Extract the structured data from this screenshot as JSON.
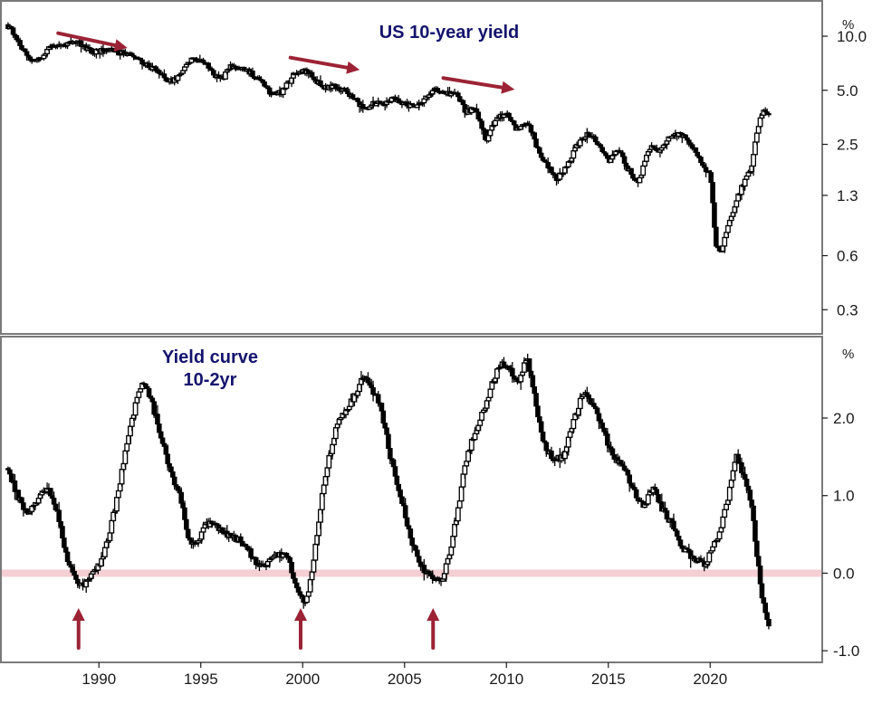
{
  "chart_data": [
    {
      "type": "candlestick",
      "title": "US 10-year yield",
      "unit": "%",
      "y_scale": "log",
      "y_ticks": [
        0.3,
        0.6,
        1.3,
        2.5,
        5.0,
        10.0
      ],
      "y_tick_labels": [
        "0.3",
        "0.6",
        "1.3",
        "2.5",
        "5.0",
        "10.0"
      ],
      "ylim": [
        0.22,
        14.5
      ],
      "xlim": [
        1985.5,
        2025.5
      ],
      "grid": false,
      "trend_arrows": [
        {
          "direction": "down",
          "from": [
            1988.0,
            10.4
          ],
          "to": [
            1991.4,
            8.6
          ]
        },
        {
          "direction": "down",
          "from": [
            1999.4,
            7.6
          ],
          "to": [
            2002.8,
            6.5
          ]
        },
        {
          "direction": "down",
          "from": [
            2006.9,
            5.85
          ],
          "to": [
            2010.4,
            5.05
          ]
        }
      ],
      "color_arrow": "#9b2335",
      "series_points": [
        [
          1985.5,
          11.6
        ],
        [
          1986.0,
          9.6
        ],
        [
          1986.5,
          7.6
        ],
        [
          1987.0,
          7.2
        ],
        [
          1987.5,
          8.6
        ],
        [
          1988.0,
          9.0
        ],
        [
          1988.5,
          9.1
        ],
        [
          1989.0,
          9.2
        ],
        [
          1989.5,
          8.3
        ],
        [
          1990.0,
          8.2
        ],
        [
          1990.5,
          8.6
        ],
        [
          1991.0,
          8.1
        ],
        [
          1991.5,
          7.8
        ],
        [
          1992.0,
          7.3
        ],
        [
          1992.5,
          6.8
        ],
        [
          1993.0,
          6.2
        ],
        [
          1993.5,
          5.6
        ],
        [
          1994.0,
          6.0
        ],
        [
          1994.5,
          7.3
        ],
        [
          1995.0,
          7.6
        ],
        [
          1995.5,
          6.3
        ],
        [
          1996.0,
          5.7
        ],
        [
          1996.5,
          6.8
        ],
        [
          1997.0,
          6.6
        ],
        [
          1997.5,
          6.2
        ],
        [
          1998.0,
          5.5
        ],
        [
          1998.5,
          4.7
        ],
        [
          1999.0,
          4.9
        ],
        [
          1999.5,
          5.9
        ],
        [
          2000.0,
          6.5
        ],
        [
          2000.5,
          6.0
        ],
        [
          2001.0,
          5.1
        ],
        [
          2001.5,
          5.3
        ],
        [
          2002.0,
          5.0
        ],
        [
          2002.5,
          4.6
        ],
        [
          2003.0,
          3.9
        ],
        [
          2003.5,
          4.2
        ],
        [
          2004.0,
          4.2
        ],
        [
          2004.5,
          4.6
        ],
        [
          2005.0,
          4.2
        ],
        [
          2005.5,
          4.1
        ],
        [
          2006.0,
          4.5
        ],
        [
          2006.5,
          5.1
        ],
        [
          2007.0,
          4.7
        ],
        [
          2007.5,
          4.9
        ],
        [
          2008.0,
          3.8
        ],
        [
          2008.5,
          3.9
        ],
        [
          2009.0,
          2.6
        ],
        [
          2009.5,
          3.5
        ],
        [
          2010.0,
          3.7
        ],
        [
          2010.5,
          3.0
        ],
        [
          2011.0,
          3.4
        ],
        [
          2011.5,
          2.4
        ],
        [
          2012.0,
          1.9
        ],
        [
          2012.5,
          1.6
        ],
        [
          2013.0,
          1.9
        ],
        [
          2013.5,
          2.5
        ],
        [
          2014.0,
          2.9
        ],
        [
          2014.5,
          2.5
        ],
        [
          2015.0,
          2.0
        ],
        [
          2015.5,
          2.3
        ],
        [
          2016.0,
          1.8
        ],
        [
          2016.5,
          1.5
        ],
        [
          2017.0,
          2.4
        ],
        [
          2017.5,
          2.3
        ],
        [
          2018.0,
          2.7
        ],
        [
          2018.5,
          2.9
        ],
        [
          2019.0,
          2.6
        ],
        [
          2019.5,
          2.0
        ],
        [
          2020.0,
          1.7
        ],
        [
          2020.25,
          0.7
        ],
        [
          2020.5,
          0.62
        ],
        [
          2021.0,
          0.95
        ],
        [
          2021.5,
          1.4
        ],
        [
          2022.0,
          1.8
        ],
        [
          2022.3,
          2.9
        ],
        [
          2022.6,
          3.9
        ],
        [
          2022.9,
          3.7
        ]
      ]
    },
    {
      "type": "candlestick",
      "title": "Yield curve 10-2yr",
      "title_lines": [
        "Yield curve",
        "10-2yr"
      ],
      "unit": "%",
      "y_scale": "linear",
      "y_ticks": [
        -1.0,
        0.0,
        1.0,
        2.0
      ],
      "y_tick_labels": [
        "-1.0",
        "0.0",
        "1.0",
        "2.0"
      ],
      "ylim": [
        -1.15,
        3.05
      ],
      "xlim": [
        1985.5,
        2025.5
      ],
      "x_ticks": [
        1990,
        1995,
        2000,
        2005,
        2010,
        2015,
        2020
      ],
      "x_tick_labels": [
        "1990",
        "1995",
        "2000",
        "2005",
        "2010",
        "2015",
        "2020"
      ],
      "grid": false,
      "zero_band": 0.0,
      "color_zero_band": "#f4cfd3",
      "inversion_arrows": [
        1989.0,
        1999.9,
        2006.4
      ],
      "color_arrow": "#9b2335",
      "series_points": [
        [
          1985.5,
          1.35
        ],
        [
          1986.0,
          1.0
        ],
        [
          1986.5,
          0.75
        ],
        [
          1987.0,
          0.95
        ],
        [
          1987.5,
          1.1
        ],
        [
          1988.0,
          0.75
        ],
        [
          1988.5,
          0.1
        ],
        [
          1988.9,
          -0.1
        ],
        [
          1989.3,
          -0.15
        ],
        [
          1989.7,
          0.0
        ],
        [
          1990.0,
          0.1
        ],
        [
          1990.4,
          0.4
        ],
        [
          1990.8,
          0.85
        ],
        [
          1991.3,
          1.55
        ],
        [
          1991.8,
          2.2
        ],
        [
          1992.2,
          2.45
        ],
        [
          1992.6,
          2.2
        ],
        [
          1993.0,
          1.8
        ],
        [
          1993.6,
          1.25
        ],
        [
          1994.0,
          1.0
        ],
        [
          1994.4,
          0.45
        ],
        [
          1994.8,
          0.35
        ],
        [
          1995.3,
          0.65
        ],
        [
          1995.8,
          0.6
        ],
        [
          1996.3,
          0.5
        ],
        [
          1996.8,
          0.45
        ],
        [
          1997.3,
          0.3
        ],
        [
          1997.8,
          0.1
        ],
        [
          1998.3,
          0.15
        ],
        [
          1998.8,
          0.25
        ],
        [
          1999.3,
          0.2
        ],
        [
          1999.7,
          -0.2
        ],
        [
          2000.1,
          -0.4
        ],
        [
          2000.4,
          -0.1
        ],
        [
          2000.7,
          0.5
        ],
        [
          2001.1,
          1.25
        ],
        [
          2001.6,
          1.85
        ],
        [
          2002.1,
          2.1
        ],
        [
          2002.6,
          2.3
        ],
        [
          2003.0,
          2.55
        ],
        [
          2003.4,
          2.35
        ],
        [
          2003.8,
          2.2
        ],
        [
          2004.3,
          1.5
        ],
        [
          2004.8,
          1.0
        ],
        [
          2005.3,
          0.45
        ],
        [
          2005.8,
          0.1
        ],
        [
          2006.3,
          -0.05
        ],
        [
          2006.8,
          -0.1
        ],
        [
          2007.2,
          0.2
        ],
        [
          2007.6,
          0.8
        ],
        [
          2008.0,
          1.45
        ],
        [
          2008.5,
          1.85
        ],
        [
          2008.9,
          2.1
        ],
        [
          2009.3,
          2.45
        ],
        [
          2009.7,
          2.7
        ],
        [
          2010.2,
          2.6
        ],
        [
          2010.6,
          2.45
        ],
        [
          2011.0,
          2.8
        ],
        [
          2011.4,
          2.25
        ],
        [
          2011.8,
          1.7
        ],
        [
          2012.3,
          1.45
        ],
        [
          2012.8,
          1.5
        ],
        [
          2013.3,
          1.95
        ],
        [
          2013.8,
          2.35
        ],
        [
          2014.2,
          2.2
        ],
        [
          2014.7,
          1.9
        ],
        [
          2015.2,
          1.5
        ],
        [
          2015.7,
          1.4
        ],
        [
          2016.2,
          1.1
        ],
        [
          2016.7,
          0.85
        ],
        [
          2017.2,
          1.1
        ],
        [
          2017.7,
          0.8
        ],
        [
          2018.2,
          0.6
        ],
        [
          2018.7,
          0.3
        ],
        [
          2019.2,
          0.2
        ],
        [
          2019.7,
          0.1
        ],
        [
          2020.1,
          0.3
        ],
        [
          2020.5,
          0.55
        ],
        [
          2020.9,
          1.0
        ],
        [
          2021.3,
          1.5
        ],
        [
          2021.7,
          1.2
        ],
        [
          2022.0,
          0.95
        ],
        [
          2022.3,
          0.2
        ],
        [
          2022.6,
          -0.4
        ],
        [
          2022.9,
          -0.75
        ]
      ]
    }
  ]
}
